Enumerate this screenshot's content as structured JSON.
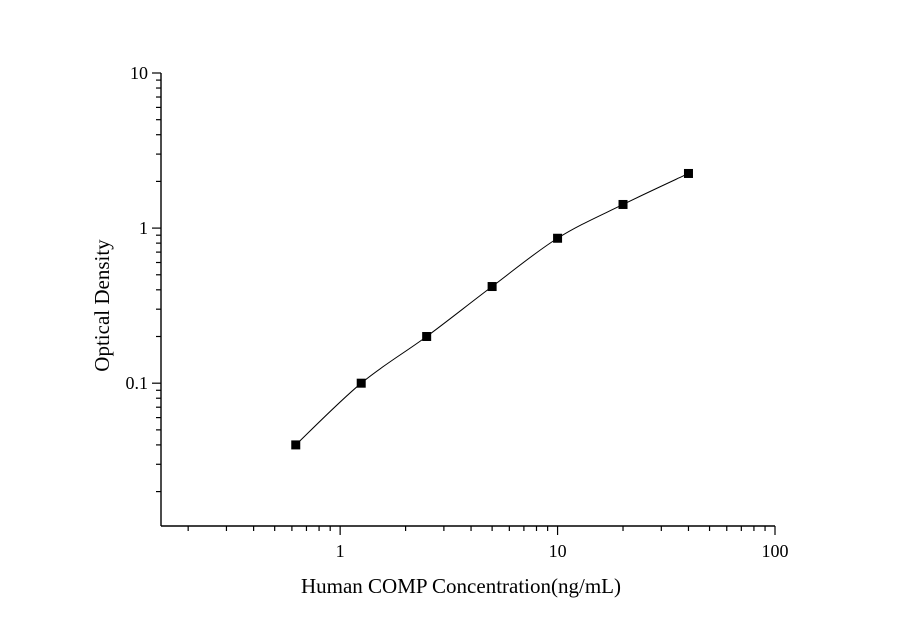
{
  "chart_data": {
    "type": "scatter",
    "title": "",
    "xlabel": "Human COMP Concentration(ng/mL)",
    "ylabel": "Optical Density",
    "x_scale": "log",
    "y_scale": "log",
    "xlim": [
      0.15,
      100
    ],
    "ylim": [
      0.012,
      10
    ],
    "x_ticks": [
      1,
      10,
      100
    ],
    "x_tick_labels": [
      "1",
      "10",
      "100"
    ],
    "y_ticks": [
      0.1,
      1,
      10
    ],
    "y_tick_labels": [
      "0.1",
      "1",
      "10"
    ],
    "grid": false,
    "legend": "none",
    "series": [
      {
        "x": [
          0.625,
          1.25,
          2.5,
          5,
          10,
          20,
          40
        ],
        "y": [
          0.04,
          0.1,
          0.2,
          0.42,
          0.86,
          1.42,
          2.25
        ],
        "marker": "square",
        "line": "smooth",
        "color": "#000000"
      }
    ]
  }
}
